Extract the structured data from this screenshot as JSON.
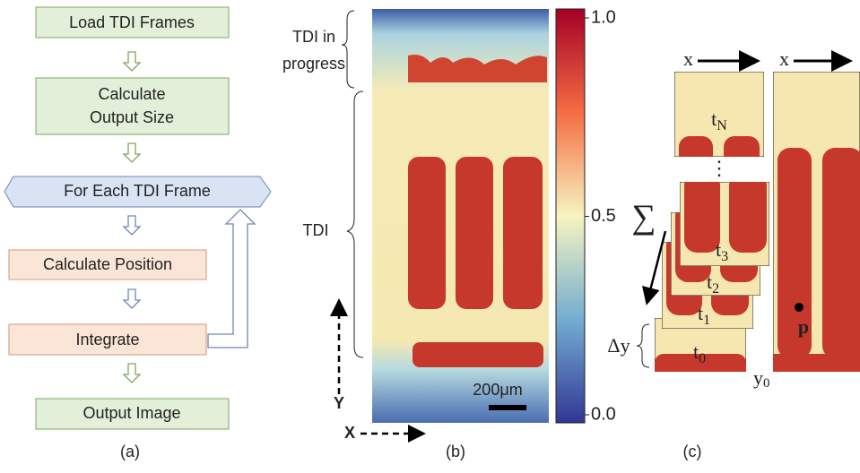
{
  "flowchart": {
    "nodes": [
      {
        "label": "Load TDI Frames"
      },
      {
        "label": "Calculate Output Size"
      },
      {
        "label": "For Each TDI Frame"
      },
      {
        "label": "Calculate Position"
      },
      {
        "label": "Integrate"
      },
      {
        "label": "Output Image"
      }
    ],
    "caption": "(a)"
  },
  "heatmap": {
    "annotations": [
      "TDI in progress",
      "TDI"
    ],
    "scale_bar": "200μm",
    "axis_y": "Y",
    "axis_x": "X",
    "caption": "(b)",
    "colorbar": {
      "range": [
        0,
        1
      ],
      "ticks": [
        {
          "value": 1,
          "label": "1.0"
        },
        {
          "value": 0.5,
          "label": "0.5"
        },
        {
          "value": 0,
          "label": "0.0"
        }
      ]
    }
  },
  "frames": {
    "x_label": "x",
    "sum": "∑",
    "dots": "⋮",
    "delta": "Δy",
    "y0": {
      "base": "y",
      "sub": "0"
    },
    "point": "p",
    "caption": "(c)",
    "stack": [
      {
        "base": "t",
        "sub": "N"
      },
      {
        "base": "t",
        "sub": "3"
      },
      {
        "base": "t",
        "sub": "2"
      },
      {
        "base": "t",
        "sub": "1"
      },
      {
        "base": "t",
        "sub": "0"
      }
    ]
  }
}
